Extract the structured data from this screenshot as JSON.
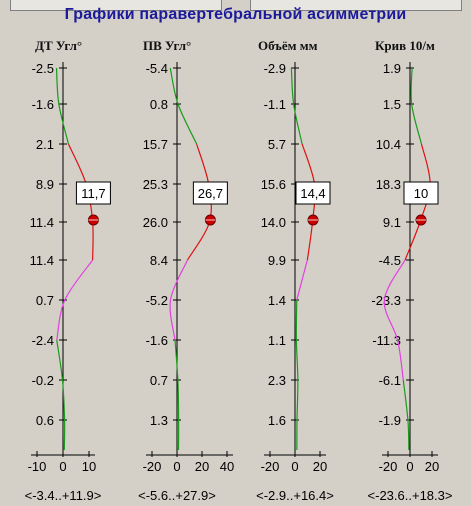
{
  "title": "Графики паравертебральной асимметрии",
  "colors": {
    "background": "#d4d0c8",
    "title": "#1a1a9a",
    "axis": "#000000",
    "curve_green": "#1a9a1a",
    "curve_red": "#e01010",
    "curve_magenta": "#e040e0",
    "marker": "#cc0000"
  },
  "columns": [
    {
      "header": "ДТ Угл°",
      "row_labels": [
        "-2.5",
        "-1.6",
        "2.1",
        "8.9",
        "11.4",
        "11.4",
        "0.7",
        "-2.4",
        "-0.2",
        "0.6"
      ],
      "x_ticks": [
        "-10",
        "0",
        "10"
      ],
      "x_values": [
        -10,
        0,
        10
      ],
      "range_text": "<-3.4..+11.9>",
      "value_box": "11,7",
      "marker_value": 11.7,
      "curve": {
        "green": [
          [
            -2.5,
            0
          ],
          [
            -1.6,
            1
          ],
          [
            2.1,
            2
          ]
        ],
        "red": [
          [
            2.1,
            2
          ],
          [
            8.9,
            3
          ],
          [
            11.4,
            4
          ],
          [
            11.4,
            5
          ]
        ],
        "magenta": [
          [
            11.4,
            5
          ],
          [
            0.7,
            6
          ],
          [
            -2.4,
            7
          ]
        ],
        "green_tail": [
          [
            -2.4,
            7
          ],
          [
            -0.2,
            8
          ],
          [
            0.6,
            9
          ],
          [
            0.5,
            10
          ]
        ]
      }
    },
    {
      "header": "ПВ Угл°",
      "row_labels": [
        "-5.4",
        "0.8",
        "15.7",
        "25.3",
        "26.0",
        "8.4",
        "-5.2",
        "-1.6",
        "0.7",
        "1.3"
      ],
      "x_ticks": [
        "-20",
        "0",
        "20",
        "40"
      ],
      "x_values": [
        -20,
        0,
        20,
        40
      ],
      "range_text": "<-5.6..+27.9>",
      "value_box": "26,7",
      "marker_value": 26.7,
      "curve": {
        "green": [
          [
            -5.4,
            0
          ],
          [
            0.8,
            1
          ],
          [
            15.7,
            2
          ]
        ],
        "red": [
          [
            15.7,
            2
          ],
          [
            25.3,
            3
          ],
          [
            26.0,
            4
          ],
          [
            8.4,
            5
          ]
        ],
        "magenta": [
          [
            8.4,
            5
          ],
          [
            -5.2,
            6
          ],
          [
            -1.6,
            7
          ]
        ],
        "green_tail": [
          [
            -1.6,
            7
          ],
          [
            0.7,
            8
          ],
          [
            1.3,
            9
          ],
          [
            1.2,
            10
          ]
        ]
      }
    },
    {
      "header": "Объём мм",
      "row_labels": [
        "-2.9",
        "-1.1",
        "5.7",
        "15.6",
        "14.0",
        "9.9",
        "1.4",
        "1.1",
        "2.3",
        "1.6"
      ],
      "x_ticks": [
        "-20",
        "0",
        "20"
      ],
      "x_values": [
        -20,
        0,
        20
      ],
      "range_text": "<-2.9..+16.4>",
      "value_box": "14,4",
      "marker_value": 14.4,
      "curve": {
        "green": [
          [
            -2.9,
            0
          ],
          [
            -1.1,
            1
          ],
          [
            5.7,
            2
          ]
        ],
        "red": [
          [
            5.7,
            2
          ],
          [
            15.6,
            3
          ],
          [
            14.0,
            4
          ],
          [
            9.9,
            5
          ]
        ],
        "magenta": [
          [
            9.9,
            5
          ],
          [
            1.4,
            6
          ]
        ],
        "green_tail": [
          [
            1.4,
            6
          ],
          [
            1.1,
            7
          ],
          [
            2.3,
            8
          ],
          [
            1.6,
            9
          ],
          [
            1.5,
            10
          ]
        ]
      }
    },
    {
      "header": "Крив 10/м",
      "row_labels": [
        "1.9",
        "1.5",
        "10.4",
        "18.3",
        "9.1",
        "-4.5",
        "-23.3",
        "-11.3",
        "-6.1",
        "-1.9"
      ],
      "x_ticks": [
        "-20",
        "0",
        "20"
      ],
      "x_values": [
        -20,
        0,
        20
      ],
      "range_text": "<-23.6..+18.3>",
      "value_box": "10",
      "marker_value": 10,
      "curve": {
        "green": [
          [
            1.9,
            0
          ],
          [
            1.5,
            1
          ],
          [
            10.4,
            2
          ]
        ],
        "red": [
          [
            10.4,
            2
          ],
          [
            18.3,
            3
          ],
          [
            9.1,
            4
          ],
          [
            -4.5,
            5
          ]
        ],
        "magenta": [
          [
            -4.5,
            5
          ],
          [
            -23.3,
            6
          ],
          [
            -11.3,
            7
          ],
          [
            -6.1,
            8
          ]
        ],
        "green_tail": [
          [
            -6.1,
            8
          ],
          [
            -1.9,
            9
          ],
          [
            -1.0,
            10
          ]
        ]
      }
    }
  ]
}
